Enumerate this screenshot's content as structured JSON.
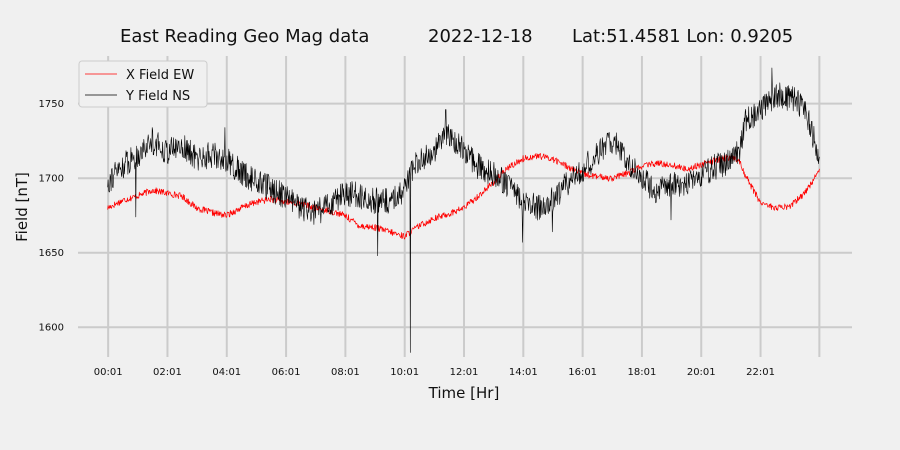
{
  "chart_data": {
    "type": "line",
    "title_parts": {
      "name": "East Reading Geo Mag data",
      "date": "2022-12-18",
      "location": "Lat:51.4581  Lon: 0.9205"
    },
    "xlabel": "Time  [Hr]",
    "ylabel": "Field  [nT]",
    "x_unit": "hours",
    "xlim": [
      -1.0,
      25.1
    ],
    "ylim": [
      1580,
      1782
    ],
    "x_ticks": [
      0.0167,
      2.0167,
      4.0167,
      6.0167,
      8.0167,
      10.0167,
      12.0167,
      14.0167,
      16.0167,
      18.0167,
      20.0167,
      22.0167,
      24.0
    ],
    "x_tick_labels": [
      "00:01",
      "02:01",
      "04:01",
      "06:01",
      "08:01",
      "10:01",
      "12:01",
      "14:01",
      "16:01",
      "18:01",
      "20:01",
      "22:01",
      ""
    ],
    "y_ticks": [
      1600,
      1650,
      1700,
      1750
    ],
    "y_tick_labels": [
      "1600",
      "1650",
      "1700",
      "1750"
    ],
    "grid": true,
    "legend_position": "top-left",
    "series": [
      {
        "name": "X Field EW",
        "color": "#ff0000",
        "x": [
          0,
          0.5,
          1,
          1.5,
          2,
          2.5,
          3,
          3.5,
          4,
          4.5,
          5,
          5.5,
          6,
          6.5,
          7,
          7.5,
          8,
          8.5,
          9,
          9.5,
          10,
          10.5,
          11,
          11.5,
          12,
          12.5,
          13,
          13.5,
          14,
          14.5,
          15,
          15.5,
          16,
          16.5,
          17,
          17.5,
          18,
          18.5,
          19,
          19.5,
          20,
          20.5,
          21,
          21.3,
          21.5,
          22,
          22.5,
          23,
          23.5,
          24
        ],
        "y": [
          1680,
          1685,
          1688,
          1692,
          1690,
          1688,
          1680,
          1677,
          1675,
          1680,
          1684,
          1686,
          1684,
          1683,
          1680,
          1678,
          1675,
          1668,
          1667,
          1664,
          1661,
          1668,
          1673,
          1676,
          1680,
          1688,
          1697,
          1707,
          1713,
          1715,
          1713,
          1708,
          1703,
          1701,
          1700,
          1703,
          1708,
          1710,
          1709,
          1706,
          1709,
          1712,
          1714,
          1712,
          1702,
          1684,
          1680,
          1681,
          1690,
          1705
        ]
      },
      {
        "name": "Y Field NS",
        "color": "#000000",
        "x": [
          0,
          0.5,
          1,
          1.5,
          2,
          2.5,
          3,
          3.5,
          4,
          4.5,
          5,
          5.5,
          6,
          6.5,
          7,
          7.5,
          8,
          8.5,
          9,
          9.5,
          10,
          10.5,
          11,
          11.5,
          12,
          12.5,
          13,
          13.5,
          14,
          14.5,
          15,
          15.5,
          16,
          16.5,
          17,
          17.5,
          18,
          18.5,
          19,
          19.5,
          20,
          20.5,
          21,
          21.3,
          21.5,
          22,
          22.5,
          23,
          23.5,
          24
        ],
        "y": [
          1698,
          1708,
          1716,
          1725,
          1718,
          1722,
          1713,
          1716,
          1712,
          1704,
          1698,
          1693,
          1688,
          1680,
          1676,
          1683,
          1690,
          1688,
          1685,
          1684,
          1693,
          1713,
          1718,
          1730,
          1718,
          1708,
          1703,
          1696,
          1684,
          1680,
          1685,
          1697,
          1705,
          1716,
          1726,
          1712,
          1700,
          1692,
          1695,
          1697,
          1702,
          1708,
          1712,
          1718,
          1738,
          1744,
          1756,
          1754,
          1748,
          1713
        ],
        "spikes": [
          {
            "x": 10.2,
            "y": 1583
          },
          {
            "x": 14.0,
            "y": 1657
          },
          {
            "x": 0.95,
            "y": 1674
          },
          {
            "x": 1.5,
            "y": 1734
          },
          {
            "x": 3.95,
            "y": 1734
          },
          {
            "x": 9.1,
            "y": 1648
          },
          {
            "x": 11.4,
            "y": 1746
          },
          {
            "x": 22.4,
            "y": 1774
          },
          {
            "x": 19.0,
            "y": 1672
          },
          {
            "x": 15.0,
            "y": 1664
          }
        ]
      }
    ]
  }
}
